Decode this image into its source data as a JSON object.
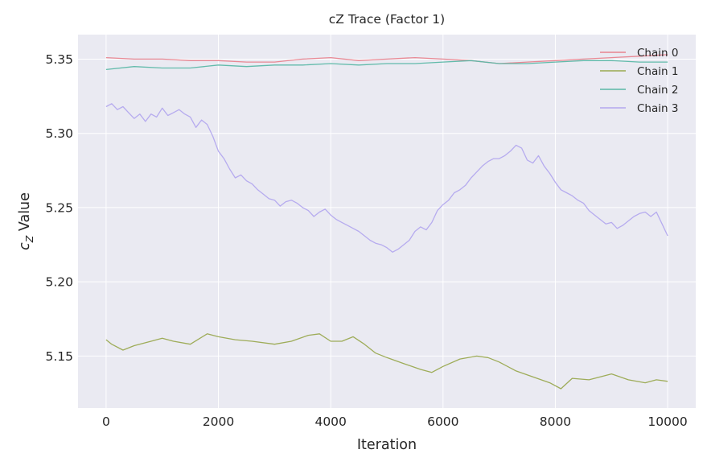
{
  "chart_data": {
    "type": "line",
    "title": "cZ Trace (Factor 1)",
    "xlabel": "Iteration",
    "ylabel": {
      "symbol": "c",
      "subscript": "Z",
      "text": " Value"
    },
    "xlim": [
      -500,
      10500
    ],
    "ylim": [
      5.115,
      5.3665
    ],
    "xticks": [
      0,
      2000,
      4000,
      6000,
      8000,
      10000
    ],
    "xtick_labels": [
      "0",
      "2000",
      "4000",
      "6000",
      "8000",
      "10000"
    ],
    "yticks": [
      5.15,
      5.2,
      5.25,
      5.3,
      5.35
    ],
    "ytick_labels": [
      "5.15",
      "5.20",
      "5.25",
      "5.30",
      "5.35"
    ],
    "grid": true,
    "legend_position": "top-right",
    "series": [
      {
        "name": "Chain 0",
        "color": "#e8838e",
        "x": [
          0,
          500,
          1000,
          1500,
          2000,
          2500,
          3000,
          3500,
          4000,
          4500,
          5000,
          5500,
          6000,
          6500,
          7000,
          7500,
          8000,
          8500,
          9000,
          9500,
          10000
        ],
        "values": [
          5.351,
          5.35,
          5.35,
          5.349,
          5.349,
          5.348,
          5.348,
          5.35,
          5.351,
          5.349,
          5.35,
          5.351,
          5.35,
          5.349,
          5.347,
          5.348,
          5.349,
          5.35,
          5.351,
          5.352,
          5.353
        ]
      },
      {
        "name": "Chain 1",
        "color": "#9aa950",
        "x": [
          0,
          100,
          300,
          500,
          800,
          1000,
          1200,
          1500,
          1800,
          2000,
          2300,
          2600,
          3000,
          3300,
          3600,
          3800,
          4000,
          4200,
          4400,
          4600,
          4800,
          5000,
          5300,
          5600,
          5800,
          6000,
          6300,
          6600,
          6800,
          7000,
          7300,
          7600,
          7900,
          8100,
          8300,
          8600,
          9000,
          9300,
          9600,
          9800,
          10000
        ],
        "values": [
          5.161,
          5.158,
          5.154,
          5.157,
          5.16,
          5.162,
          5.16,
          5.158,
          5.165,
          5.163,
          5.161,
          5.16,
          5.158,
          5.16,
          5.164,
          5.165,
          5.16,
          5.16,
          5.163,
          5.158,
          5.152,
          5.149,
          5.145,
          5.141,
          5.139,
          5.143,
          5.148,
          5.15,
          5.149,
          5.146,
          5.14,
          5.136,
          5.132,
          5.128,
          5.135,
          5.134,
          5.138,
          5.134,
          5.132,
          5.134,
          5.133
        ]
      },
      {
        "name": "Chain 2",
        "color": "#5bb8a6",
        "x": [
          0,
          500,
          1000,
          1500,
          2000,
          2500,
          3000,
          3500,
          4000,
          4500,
          5000,
          5500,
          6000,
          6500,
          7000,
          7500,
          8000,
          8500,
          9000,
          9500,
          10000
        ],
        "values": [
          5.343,
          5.345,
          5.344,
          5.344,
          5.346,
          5.345,
          5.346,
          5.346,
          5.347,
          5.346,
          5.347,
          5.347,
          5.348,
          5.349,
          5.347,
          5.347,
          5.348,
          5.349,
          5.349,
          5.348,
          5.348
        ]
      },
      {
        "name": "Chain 3",
        "color": "#b3a8ee",
        "x": [
          0,
          100,
          200,
          300,
          400,
          500,
          600,
          700,
          800,
          900,
          1000,
          1100,
          1200,
          1300,
          1400,
          1500,
          1600,
          1700,
          1800,
          1900,
          2000,
          2100,
          2200,
          2300,
          2400,
          2500,
          2600,
          2700,
          2800,
          2900,
          3000,
          3100,
          3200,
          3300,
          3400,
          3500,
          3600,
          3700,
          3800,
          3900,
          4000,
          4100,
          4200,
          4300,
          4400,
          4500,
          4600,
          4700,
          4800,
          4900,
          5000,
          5100,
          5200,
          5300,
          5400,
          5500,
          5600,
          5700,
          5800,
          5900,
          6000,
          6100,
          6200,
          6300,
          6400,
          6500,
          6600,
          6700,
          6800,
          6900,
          7000,
          7100,
          7200,
          7300,
          7400,
          7500,
          7600,
          7700,
          7800,
          7900,
          8000,
          8100,
          8200,
          8300,
          8400,
          8500,
          8600,
          8700,
          8800,
          8900,
          9000,
          9100,
          9200,
          9300,
          9400,
          9500,
          9600,
          9700,
          9800,
          9900,
          10000
        ],
        "values": [
          5.318,
          5.32,
          5.316,
          5.318,
          5.314,
          5.31,
          5.313,
          5.308,
          5.313,
          5.311,
          5.317,
          5.312,
          5.314,
          5.316,
          5.313,
          5.311,
          5.304,
          5.309,
          5.306,
          5.298,
          5.288,
          5.283,
          5.276,
          5.27,
          5.272,
          5.268,
          5.266,
          5.262,
          5.259,
          5.256,
          5.255,
          5.251,
          5.254,
          5.255,
          5.253,
          5.25,
          5.248,
          5.244,
          5.247,
          5.249,
          5.245,
          5.242,
          5.24,
          5.238,
          5.236,
          5.234,
          5.231,
          5.228,
          5.226,
          5.225,
          5.223,
          5.22,
          5.222,
          5.225,
          5.228,
          5.234,
          5.237,
          5.235,
          5.24,
          5.248,
          5.252,
          5.255,
          5.26,
          5.262,
          5.265,
          5.27,
          5.274,
          5.278,
          5.281,
          5.283,
          5.283,
          5.285,
          5.288,
          5.292,
          5.29,
          5.282,
          5.28,
          5.285,
          5.278,
          5.273,
          5.267,
          5.262,
          5.26,
          5.258,
          5.255,
          5.253,
          5.248,
          5.245,
          5.242,
          5.239,
          5.24,
          5.236,
          5.238,
          5.241,
          5.244,
          5.246,
          5.247,
          5.244,
          5.247,
          5.239,
          5.231
        ]
      }
    ]
  }
}
